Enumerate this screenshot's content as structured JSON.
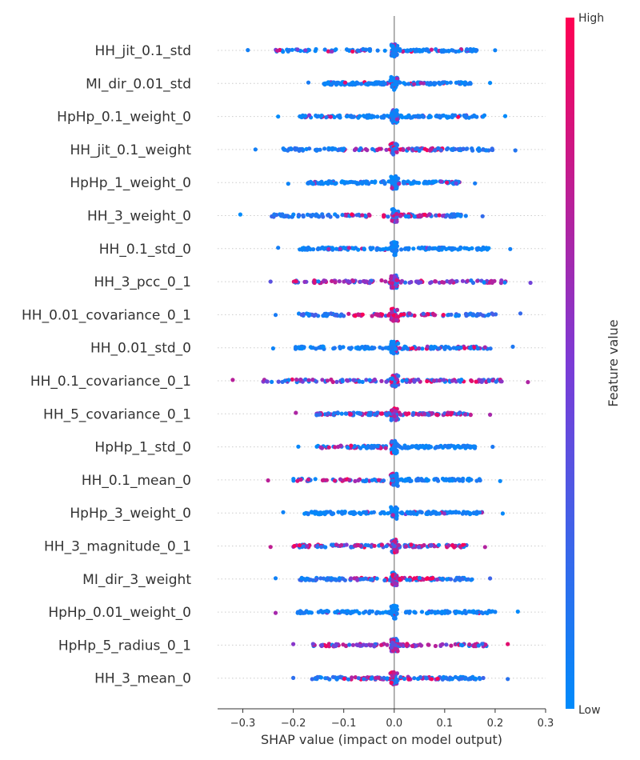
{
  "chart_data": {
    "type": "scatter",
    "subtype": "shap_beeswarm_summary",
    "xlabel": "SHAP value (impact on model output)",
    "xlim": [
      -0.35,
      0.3
    ],
    "xticks": [
      -0.3,
      -0.2,
      -0.1,
      0.0,
      0.1,
      0.2,
      0.3
    ],
    "xtick_labels": [
      "−0.3",
      "−0.2",
      "−0.1",
      "0.0",
      "0.1",
      "0.2",
      "0.3"
    ],
    "colorbar": {
      "title": "Feature value",
      "high_label": "High",
      "low_label": "Low",
      "high_color": "#ff0052",
      "mid_color": "#7c3bd6",
      "low_color": "#008bfb"
    },
    "features": [
      {
        "name": "HH_jit_0.1_std",
        "min": -0.29,
        "max": 0.2,
        "profile": "blue"
      },
      {
        "name": "MI_dir_0.01_std",
        "min": -0.17,
        "max": 0.19,
        "profile": "blue"
      },
      {
        "name": "HpHp_0.1_weight_0",
        "min": -0.23,
        "max": 0.22,
        "profile": "blue"
      },
      {
        "name": "HH_jit_0.1_weight",
        "min": -0.275,
        "max": 0.24,
        "profile": "mixed_center"
      },
      {
        "name": "HpHp_1_weight_0",
        "min": -0.21,
        "max": 0.16,
        "profile": "blue"
      },
      {
        "name": "HH_3_weight_0",
        "min": -0.305,
        "max": 0.175,
        "profile": "mixed_center"
      },
      {
        "name": "HH_0.1_std_0",
        "min": -0.23,
        "max": 0.23,
        "profile": "blue"
      },
      {
        "name": "HH_3_pcc_0_1",
        "min": -0.245,
        "max": 0.27,
        "profile": "purple"
      },
      {
        "name": "HH_0.01_covariance_0_1",
        "min": -0.235,
        "max": 0.25,
        "profile": "pink_center"
      },
      {
        "name": "HH_0.01_std_0",
        "min": -0.24,
        "max": 0.235,
        "profile": "mixed_right"
      },
      {
        "name": "HH_0.1_covariance_0_1",
        "min": -0.32,
        "max": 0.265,
        "profile": "purple"
      },
      {
        "name": "HH_5_covariance_0_1",
        "min": -0.195,
        "max": 0.19,
        "profile": "pink_right"
      },
      {
        "name": "HpHp_1_std_0",
        "min": -0.19,
        "max": 0.195,
        "profile": "mixed_left"
      },
      {
        "name": "HH_0.1_mean_0",
        "min": -0.25,
        "max": 0.21,
        "profile": "mixed_left"
      },
      {
        "name": "HpHp_3_weight_0",
        "min": -0.22,
        "max": 0.215,
        "profile": "blue"
      },
      {
        "name": "HH_3_magnitude_0_1",
        "min": -0.245,
        "max": 0.18,
        "profile": "pink_right"
      },
      {
        "name": "MI_dir_3_weight",
        "min": -0.235,
        "max": 0.19,
        "profile": "mixed_center"
      },
      {
        "name": "HpHp_0.01_weight_0",
        "min": -0.235,
        "max": 0.245,
        "profile": "blue"
      },
      {
        "name": "HpHp_5_radius_0_1",
        "min": -0.2,
        "max": 0.225,
        "profile": "purple"
      },
      {
        "name": "HH_3_mean_0",
        "min": -0.2,
        "max": 0.225,
        "profile": "mixed_center"
      }
    ]
  }
}
